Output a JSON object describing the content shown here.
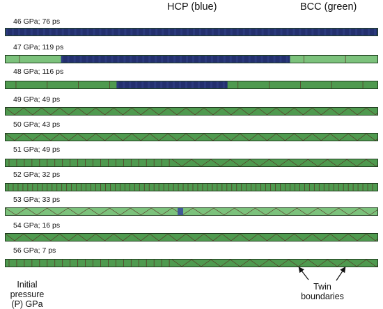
{
  "legend": {
    "hcp": "HCP (blue)",
    "bcc": "BCC (green)"
  },
  "colors": {
    "hcp_blue": "#23306e",
    "hcp_blue_light": "#3b4e9a",
    "bcc_green": "#4f9a4f",
    "bcc_green_light": "#7cc27c",
    "twin_boundary": "#5a2a22"
  },
  "rows": [
    {
      "label": "46 GPa; 76 ps",
      "phase": "mostly HCP"
    },
    {
      "label": "47 GPa; 119 ps",
      "phase": "mixed HCP/BCC"
    },
    {
      "label": "48 GPa; 116 ps",
      "phase": "mixed HCP/BCC"
    },
    {
      "label": "49 GPa; 49 ps",
      "phase": "BCC twinned"
    },
    {
      "label": "50 GPa; 43 ps",
      "phase": "BCC twinned"
    },
    {
      "label": "51 GPa; 49 ps",
      "phase": "BCC twinned"
    },
    {
      "label": "52 GPa; 32 ps",
      "phase": "BCC twinned"
    },
    {
      "label": "53 GPa; 33 ps",
      "phase": "BCC twinned"
    },
    {
      "label": "54 GPa; 16 ps",
      "phase": "BCC twinned"
    },
    {
      "label": "56 GPa; 7 ps",
      "phase": "BCC twinned"
    }
  ],
  "captions": {
    "initial_pressure": [
      "Initial",
      "pressure",
      "(P) GPa"
    ],
    "twin_boundaries": [
      "Twin",
      "boundaries"
    ]
  }
}
